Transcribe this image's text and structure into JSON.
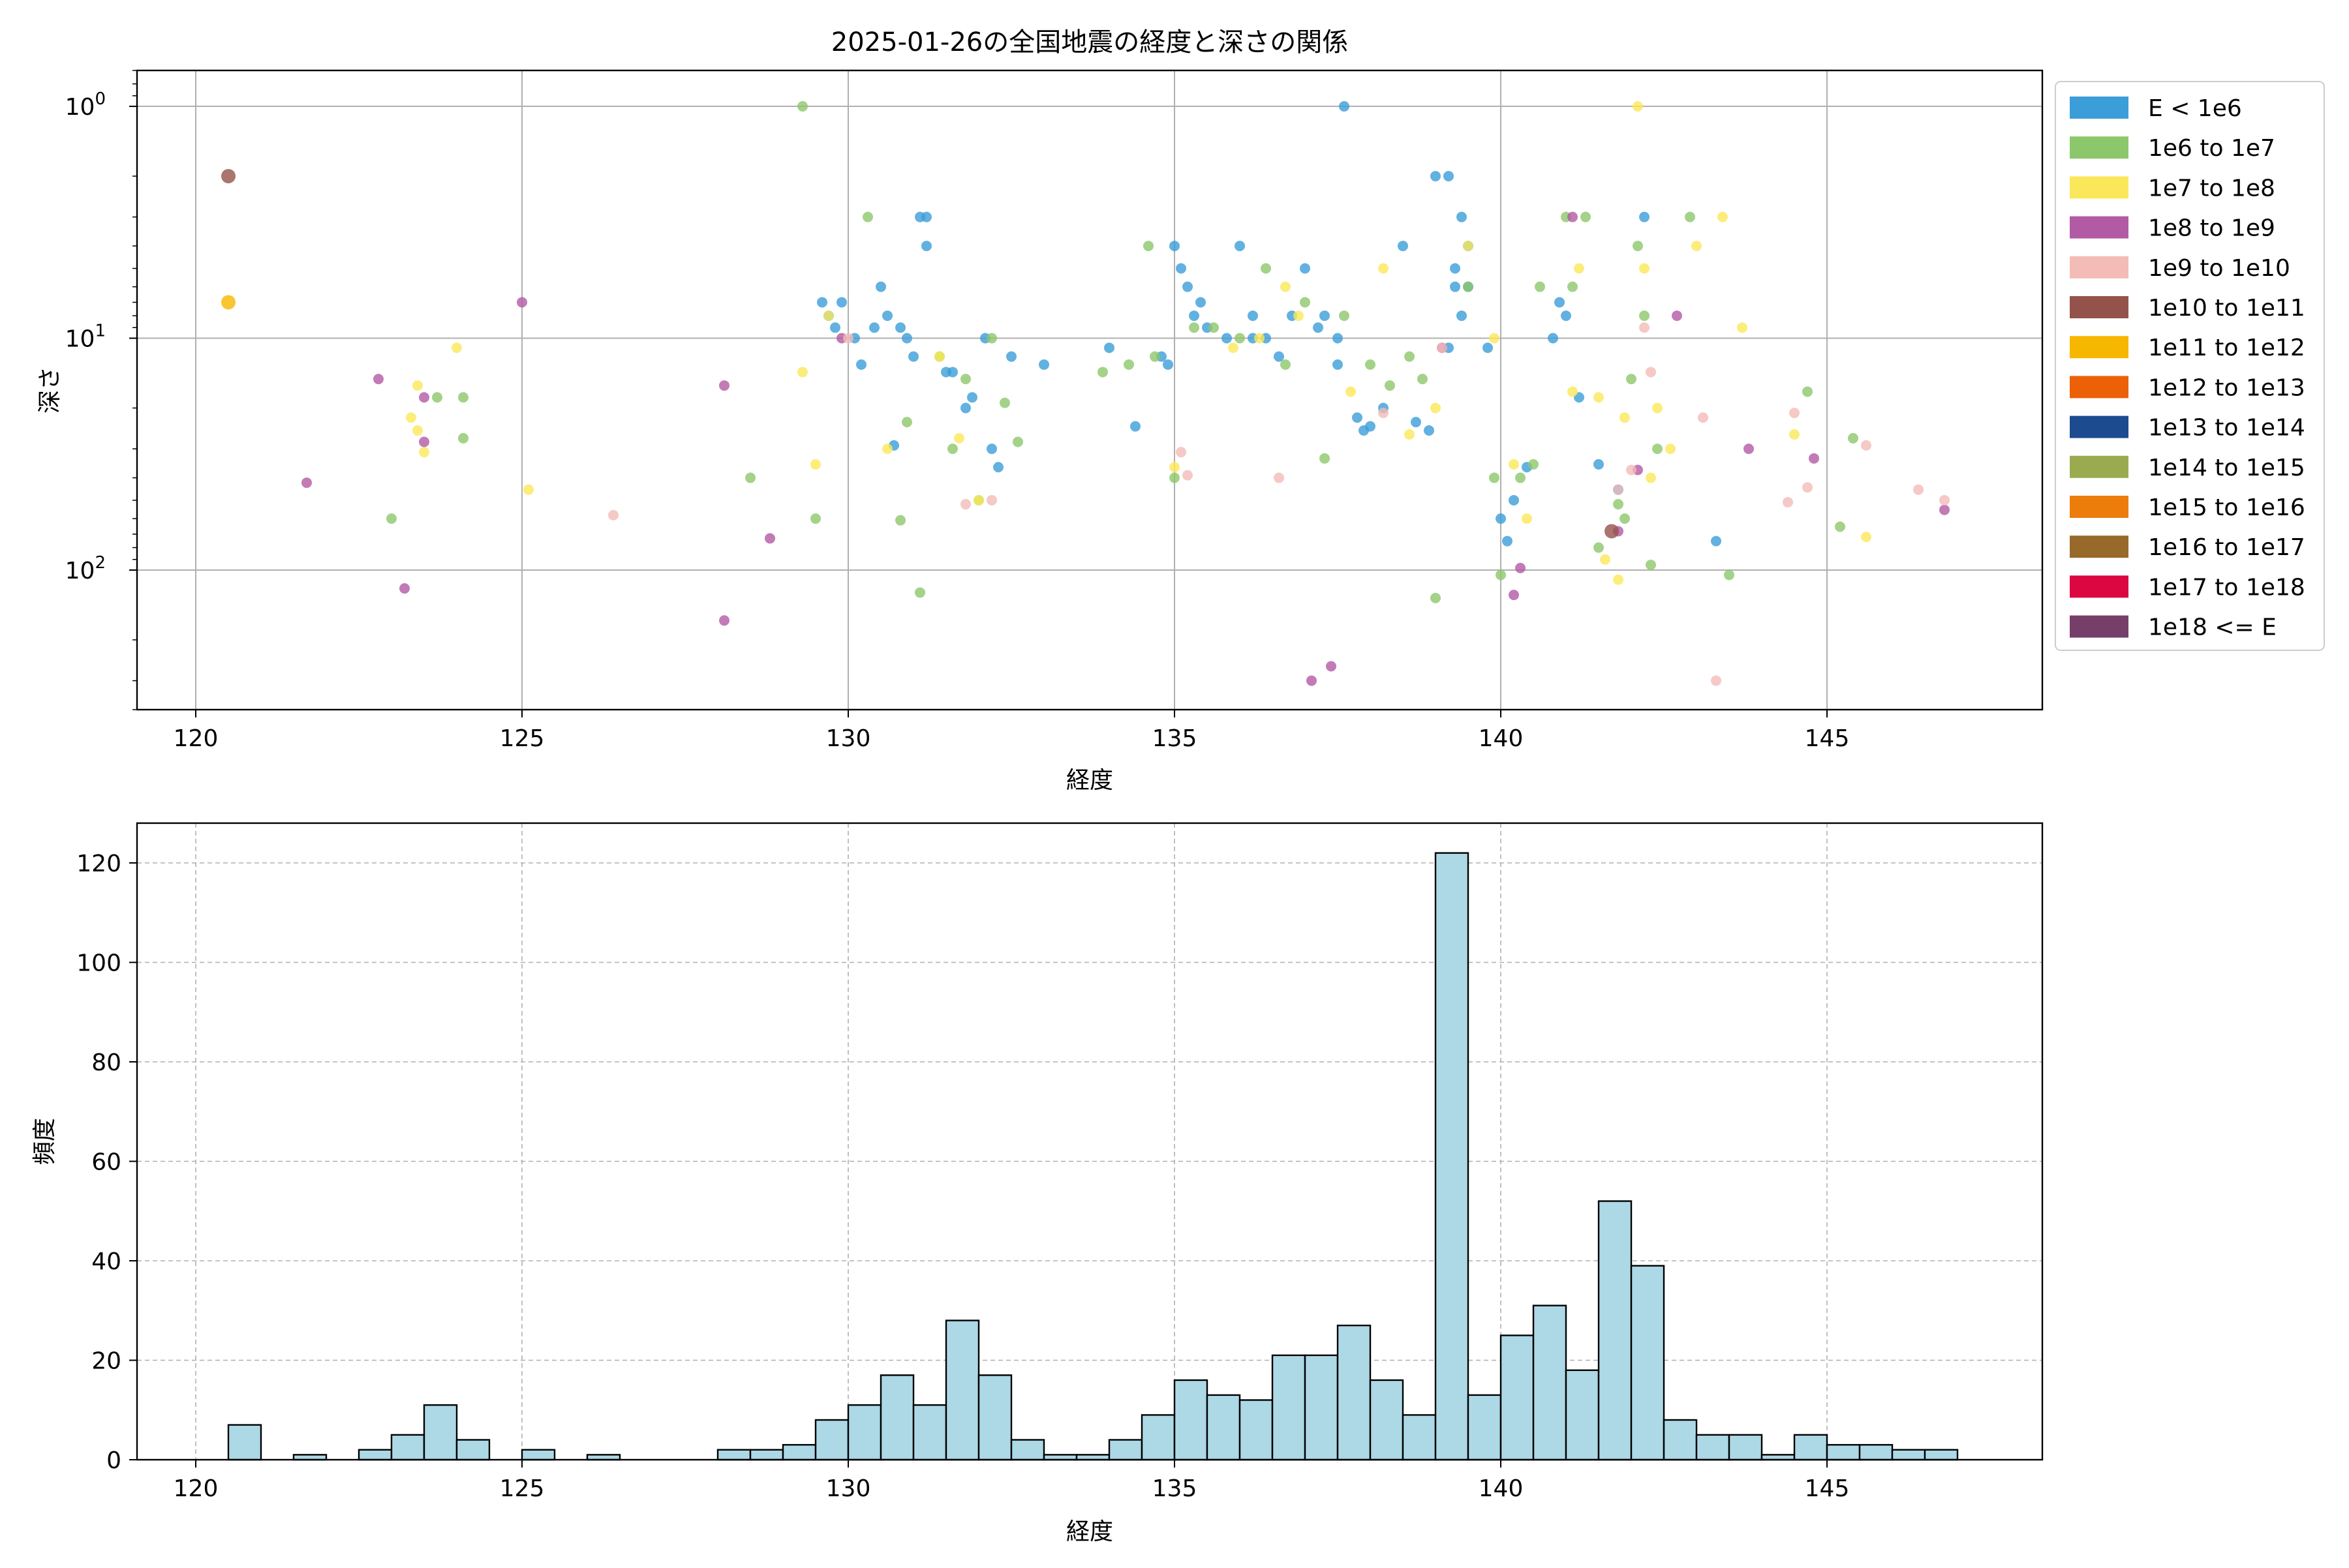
{
  "chart_data": [
    {
      "type": "scatter",
      "title": "2025-01-26の全国地震の経度と深さの関係",
      "xlabel": "経度",
      "ylabel": "深さ",
      "xlim": [
        119.1,
        148.3
      ],
      "ylim_depth": [
        0.7,
        400
      ],
      "y_scale": "log",
      "y_axis_inverted": true,
      "grid": true,
      "legend_position": "outside-right",
      "x_ticks": [
        "120",
        "125",
        "130",
        "135",
        "140",
        "145"
      ],
      "y_ticks": [
        {
          "base": "10",
          "exp": "0",
          "value": 1
        },
        {
          "base": "10",
          "exp": "1",
          "value": 10
        },
        {
          "base": "10",
          "exp": "2",
          "value": 100
        }
      ],
      "legend": [
        {
          "label": "E < 1e6",
          "color": "#3b9ed8"
        },
        {
          "label": "1e6 to 1e7",
          "color": "#8dc76b"
        },
        {
          "label": "1e7 to 1e8",
          "color": "#fbe85a"
        },
        {
          "label": "1e8 to 1e9",
          "color": "#b35aa5"
        },
        {
          "label": "1e9 to 1e10",
          "color": "#f3bcb6"
        },
        {
          "label": "1e10 to 1e11",
          "color": "#94534a"
        },
        {
          "label": "1e11 to 1e12",
          "color": "#f7b600"
        },
        {
          "label": "1e12 to 1e13",
          "color": "#ec6008"
        },
        {
          "label": "1e13 to 1e14",
          "color": "#1c4b8f"
        },
        {
          "label": "1e14 to 1e15",
          "color": "#9aab4f"
        },
        {
          "label": "1e15 to 1e16",
          "color": "#ec7d0b"
        },
        {
          "label": "1e16 to 1e17",
          "color": "#97692a"
        },
        {
          "label": "1e17 to 1e18",
          "color": "#dc0740"
        },
        {
          "label": "1e18 <= E",
          "color": "#763f6a"
        }
      ],
      "series": [
        {
          "class": 0,
          "points": [
            [
              129.9,
              7
            ],
            [
              129.7,
              8
            ],
            [
              130.1,
              10
            ],
            [
              130.4,
              9
            ],
            [
              130.5,
              6
            ],
            [
              130.6,
              8
            ],
            [
              130.8,
              9
            ],
            [
              130.9,
              10
            ],
            [
              131,
              12
            ],
            [
              131.1,
              3
            ],
            [
              131.2,
              4
            ],
            [
              131.2,
              3
            ],
            [
              131.5,
              14
            ],
            [
              131.6,
              14
            ],
            [
              131.8,
              20
            ],
            [
              131.9,
              18
            ],
            [
              132.2,
              30
            ],
            [
              132.3,
              36
            ],
            [
              132.1,
              10
            ],
            [
              132.5,
              12
            ],
            [
              133,
              13
            ],
            [
              130.7,
              29
            ],
            [
              130.2,
              13
            ],
            [
              129.8,
              9
            ],
            [
              129.6,
              7
            ],
            [
              134,
              11
            ],
            [
              134.4,
              24
            ],
            [
              134.8,
              12
            ],
            [
              134.9,
              13
            ],
            [
              135,
              4
            ],
            [
              135.1,
              5
            ],
            [
              135.2,
              6
            ],
            [
              135.3,
              8
            ],
            [
              135.4,
              7
            ],
            [
              135.5,
              9
            ],
            [
              135.8,
              10
            ],
            [
              136,
              4
            ],
            [
              136.2,
              8
            ],
            [
              136.4,
              10
            ],
            [
              136.6,
              12
            ],
            [
              136.8,
              8
            ],
            [
              137,
              5
            ],
            [
              137.2,
              9
            ],
            [
              137.5,
              10
            ],
            [
              137.6,
              1
            ],
            [
              137.8,
              22
            ],
            [
              137.9,
              25
            ],
            [
              138,
              24
            ],
            [
              138.2,
              20
            ],
            [
              138.5,
              4
            ],
            [
              138.7,
              23
            ],
            [
              138.9,
              25
            ],
            [
              139,
              2
            ],
            [
              139.2,
              2
            ],
            [
              139.3,
              5
            ],
            [
              139.4,
              8
            ],
            [
              139.5,
              6
            ],
            [
              139.8,
              11
            ],
            [
              140,
              60
            ],
            [
              140.1,
              75
            ],
            [
              140.2,
              50
            ],
            [
              140.4,
              36
            ],
            [
              140.8,
              10
            ],
            [
              141,
              8
            ],
            [
              141.2,
              18
            ],
            [
              141.5,
              35
            ],
            [
              141.8,
              45
            ],
            [
              142.2,
              3
            ],
            [
              143.3,
              75
            ],
            [
              139.3,
              6
            ],
            [
              139.5,
              4
            ],
            [
              137.3,
              8
            ],
            [
              136.2,
              10
            ],
            [
              139.4,
              3
            ],
            [
              140.9,
              7
            ],
            [
              137.5,
              13
            ],
            [
              139.2,
              11
            ]
          ]
        },
        {
          "class": 1,
          "points": [
            [
              123,
              60
            ],
            [
              123.7,
              18
            ],
            [
              124.1,
              18
            ],
            [
              124.1,
              27
            ],
            [
              129.3,
              1
            ],
            [
              128.5,
              40
            ],
            [
              129.5,
              60
            ],
            [
              130.3,
              3
            ],
            [
              130.8,
              61
            ],
            [
              130.9,
              23
            ],
            [
              131.1,
              125
            ],
            [
              131.4,
              12
            ],
            [
              131.6,
              30
            ],
            [
              131.8,
              15
            ],
            [
              132,
              50
            ],
            [
              132.2,
              10
            ],
            [
              132.4,
              19
            ],
            [
              132.6,
              28
            ],
            [
              133.9,
              14
            ],
            [
              134.3,
              13
            ],
            [
              134.6,
              4
            ],
            [
              134.7,
              12
            ],
            [
              135,
              40
            ],
            [
              135.3,
              9
            ],
            [
              135.6,
              9
            ],
            [
              136,
              10
            ],
            [
              136.4,
              5
            ],
            [
              136.7,
              13
            ],
            [
              137,
              7
            ],
            [
              137.3,
              33
            ],
            [
              137.6,
              8
            ],
            [
              138,
              13
            ],
            [
              138.3,
              16
            ],
            [
              138.6,
              12
            ],
            [
              138.8,
              15
            ],
            [
              139,
              132
            ],
            [
              139.5,
              6
            ],
            [
              140,
              105
            ],
            [
              140.3,
              40
            ],
            [
              140.6,
              6
            ],
            [
              141,
              3
            ],
            [
              141.5,
              80
            ],
            [
              141.8,
              52
            ],
            [
              142,
              15
            ],
            [
              142.1,
              4
            ],
            [
              142.3,
              95
            ],
            [
              143.5,
              105
            ],
            [
              144.7,
              17
            ],
            [
              145.4,
              27
            ],
            [
              145.2,
              65
            ],
            [
              142.9,
              3
            ],
            [
              141.3,
              3
            ],
            [
              141.1,
              6
            ],
            [
              140.5,
              35
            ],
            [
              139.9,
              40
            ],
            [
              142.2,
              8
            ],
            [
              141.9,
              60
            ],
            [
              142.4,
              30
            ]
          ]
        },
        {
          "class": 2,
          "points": [
            [
              123.4,
              16
            ],
            [
              123.3,
              22
            ],
            [
              123.4,
              25
            ],
            [
              123.5,
              31
            ],
            [
              124,
              11
            ],
            [
              125.1,
              45
            ],
            [
              129.3,
              14
            ],
            [
              129.5,
              35
            ],
            [
              129.7,
              8
            ],
            [
              130.6,
              30
            ],
            [
              131.4,
              12
            ],
            [
              131.7,
              27
            ],
            [
              132,
              50
            ],
            [
              135,
              36
            ],
            [
              135.9,
              11
            ],
            [
              136.3,
              10
            ],
            [
              136.7,
              6
            ],
            [
              136.9,
              8
            ],
            [
              137.7,
              17
            ],
            [
              138.2,
              5
            ],
            [
              138.6,
              26
            ],
            [
              139,
              20
            ],
            [
              139.5,
              4
            ],
            [
              139.9,
              10
            ],
            [
              140.2,
              35
            ],
            [
              141.1,
              17
            ],
            [
              141.5,
              18
            ],
            [
              141.6,
              90
            ],
            [
              141.8,
              110
            ],
            [
              142.1,
              1
            ],
            [
              142.2,
              5
            ],
            [
              142.4,
              20
            ],
            [
              142.6,
              30
            ],
            [
              143,
              4
            ],
            [
              143.4,
              3
            ],
            [
              143.7,
              9
            ],
            [
              144.5,
              26
            ],
            [
              145.6,
              72
            ],
            [
              141.2,
              5
            ],
            [
              142.3,
              40
            ],
            [
              140.4,
              60
            ],
            [
              141.9,
              22
            ]
          ]
        },
        {
          "class": 3,
          "points": [
            [
              121.7,
              42
            ],
            [
              122.8,
              15
            ],
            [
              123.2,
              120
            ],
            [
              123.5,
              18
            ],
            [
              123.5,
              28
            ],
            [
              125,
              7
            ],
            [
              128.1,
              16
            ],
            [
              128.1,
              165
            ],
            [
              128.8,
              73
            ],
            [
              129.9,
              10
            ],
            [
              137.1,
              300
            ],
            [
              137.4,
              260
            ],
            [
              139.1,
              11
            ],
            [
              140.2,
              128
            ],
            [
              140.3,
              98
            ],
            [
              141.1,
              3
            ],
            [
              141.8,
              68
            ],
            [
              142.1,
              37
            ],
            [
              142.7,
              8
            ],
            [
              143.8,
              30
            ],
            [
              144.8,
              33
            ],
            [
              146.8,
              55
            ]
          ]
        },
        {
          "class": 4,
          "points": [
            [
              126.4,
              58
            ],
            [
              130,
              10
            ],
            [
              131.8,
              52
            ],
            [
              132.2,
              50
            ],
            [
              135.1,
              31
            ],
            [
              135.2,
              39
            ],
            [
              136.6,
              40
            ],
            [
              138.2,
              21
            ],
            [
              141.8,
              45
            ],
            [
              142,
              37
            ],
            [
              142.2,
              9
            ],
            [
              142.3,
              14
            ],
            [
              143.1,
              22
            ],
            [
              143.3,
              300
            ],
            [
              144.4,
              51
            ],
            [
              144.5,
              21
            ],
            [
              144.7,
              44
            ],
            [
              145.6,
              29
            ],
            [
              146.4,
              45
            ],
            [
              146.8,
              50
            ],
            [
              139.1,
              11
            ]
          ]
        },
        {
          "class": 5,
          "points": [
            [
              120.5,
              2
            ],
            [
              141.7,
              68
            ]
          ]
        },
        {
          "class": 6,
          "points": [
            [
              120.5,
              7
            ]
          ]
        }
      ]
    },
    {
      "type": "bar",
      "subtype": "histogram",
      "xlabel": "経度",
      "ylabel": "頻度",
      "xlim": [
        119.1,
        148.3
      ],
      "ylim": [
        0,
        128
      ],
      "grid": true,
      "x_ticks": [
        "120",
        "125",
        "130",
        "135",
        "140",
        "145"
      ],
      "y_ticks": [
        "0",
        "20",
        "40",
        "60",
        "80",
        "100",
        "120"
      ],
      "bar_color": "#add8e6",
      "edge_color": "#000000",
      "bin_start": 120.5,
      "bin_width": 0.5,
      "values": [
        7,
        0,
        1,
        0,
        2,
        5,
        11,
        4,
        0,
        2,
        0,
        1,
        0,
        0,
        0,
        2,
        2,
        3,
        8,
        11,
        17,
        11,
        28,
        17,
        4,
        1,
        1,
        4,
        9,
        16,
        13,
        12,
        21,
        21,
        27,
        16,
        9,
        122,
        13,
        25,
        31,
        18,
        52,
        39,
        8,
        5,
        5,
        1,
        5,
        3,
        3,
        2,
        2
      ]
    }
  ]
}
